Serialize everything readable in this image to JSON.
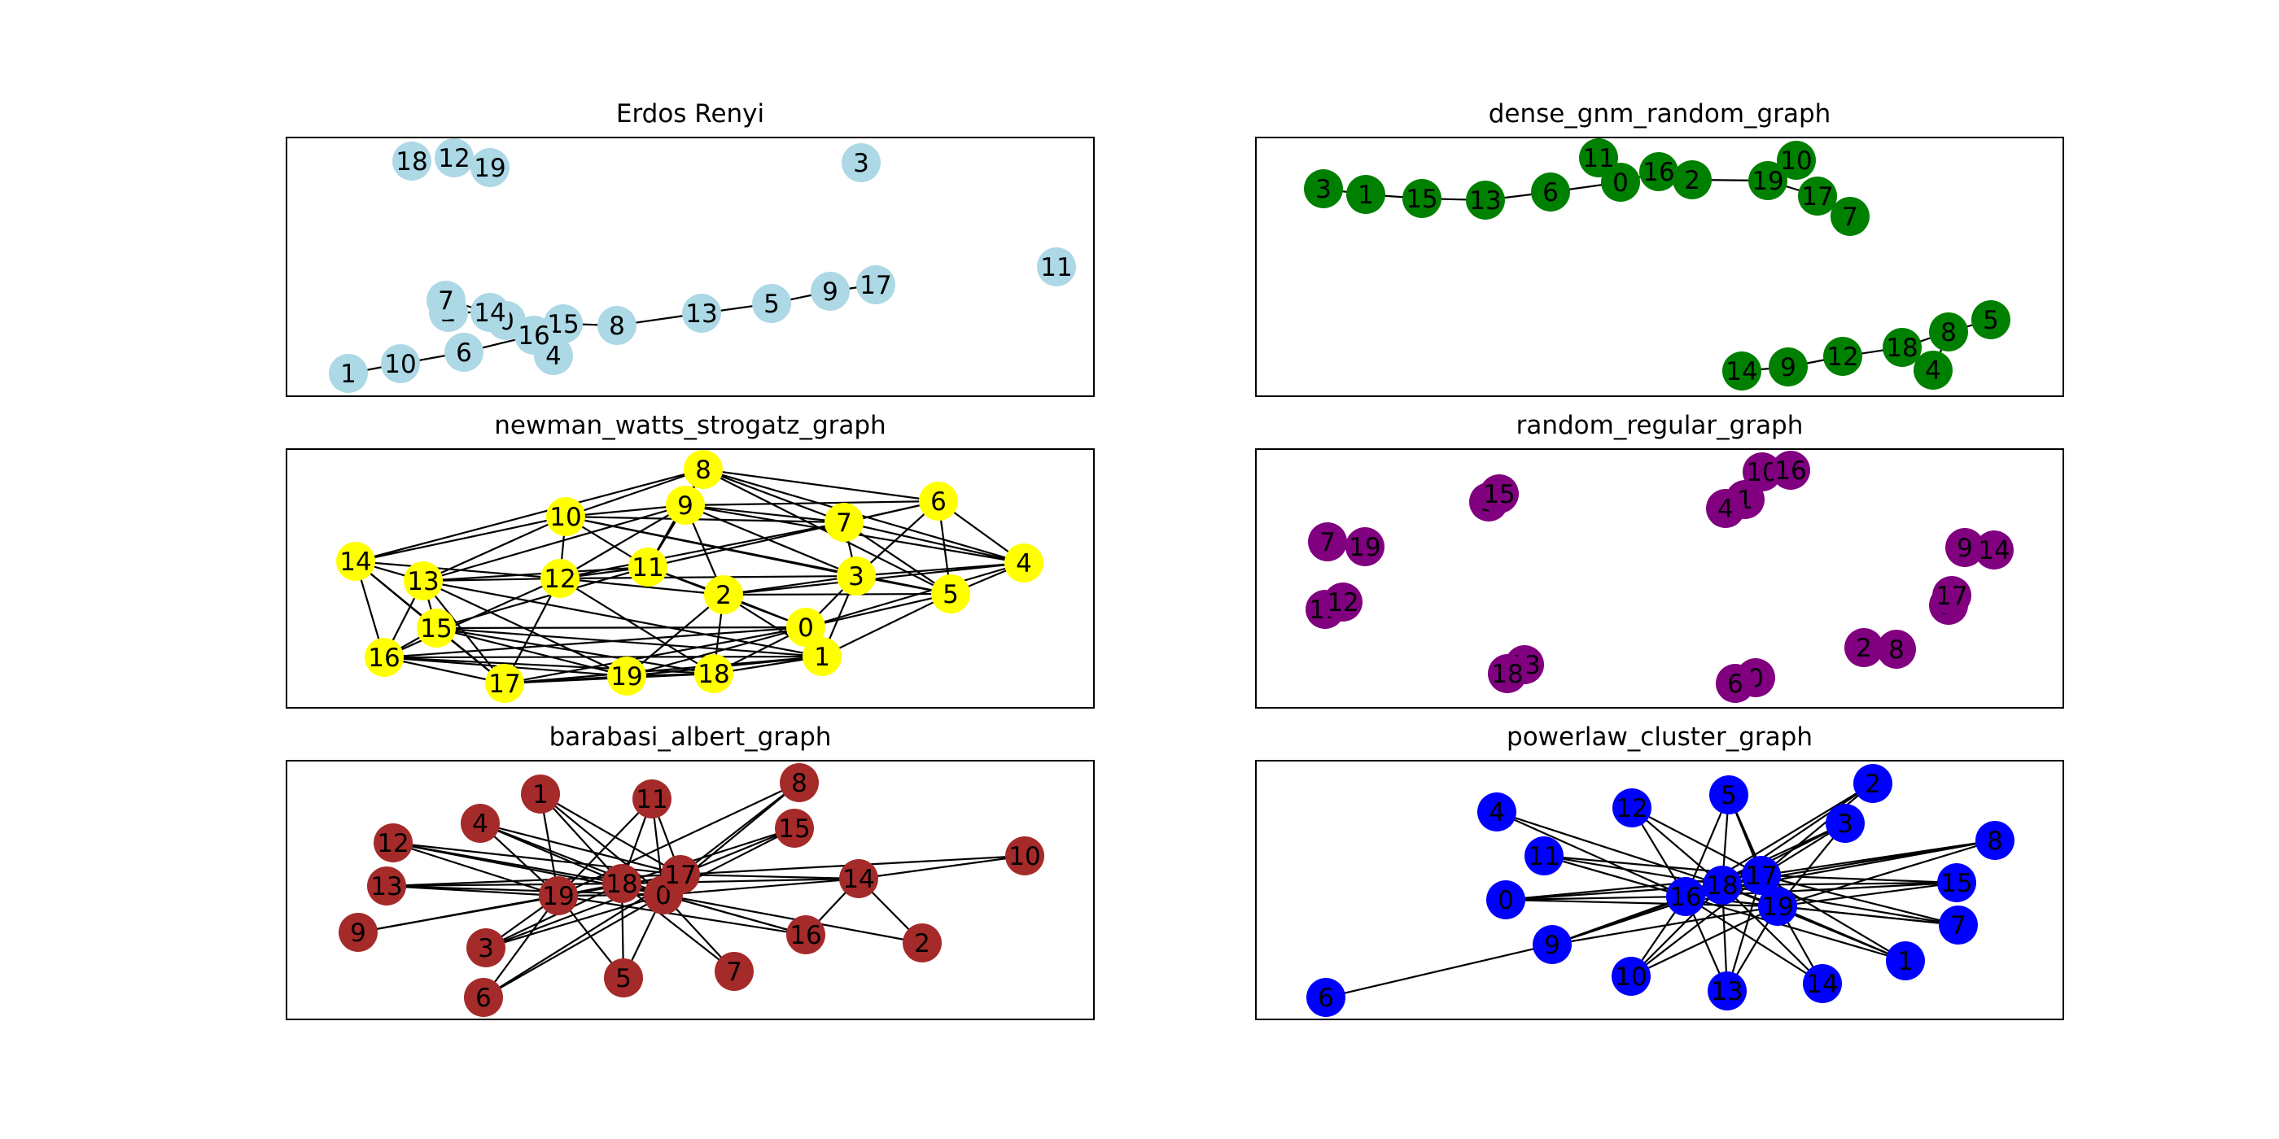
{
  "panels": [
    {
      "key": "erdos",
      "title": "Erdos Renyi",
      "node_color": "#add8e6",
      "nodes": [
        "0",
        "1",
        "2",
        "3",
        "4",
        "5",
        "6",
        "7",
        "8",
        "9",
        "10",
        "11",
        "12",
        "13",
        "14",
        "15",
        "16",
        "17",
        "18",
        "19"
      ],
      "edges": [
        [
          "1",
          "10"
        ],
        [
          "10",
          "6"
        ],
        [
          "6",
          "16"
        ],
        [
          "16",
          "4"
        ],
        [
          "16",
          "15"
        ],
        [
          "16",
          "0"
        ],
        [
          "0",
          "14"
        ],
        [
          "14",
          "2"
        ],
        [
          "14",
          "7"
        ],
        [
          "15",
          "8"
        ],
        [
          "8",
          "13"
        ],
        [
          "13",
          "5"
        ],
        [
          "5",
          "9"
        ],
        [
          "9",
          "17"
        ]
      ]
    },
    {
      "key": "dense_gnm",
      "title": "dense_gnm_random_graph",
      "node_color": "#008000",
      "nodes": [
        "0",
        "1",
        "2",
        "3",
        "4",
        "5",
        "6",
        "7",
        "8",
        "9",
        "10",
        "11",
        "12",
        "13",
        "14",
        "15",
        "16",
        "17",
        "18",
        "19"
      ],
      "edges": [
        [
          "3",
          "1"
        ],
        [
          "1",
          "15"
        ],
        [
          "15",
          "13"
        ],
        [
          "13",
          "6"
        ],
        [
          "6",
          "0"
        ],
        [
          "0",
          "11"
        ],
        [
          "0",
          "16"
        ],
        [
          "16",
          "2"
        ],
        [
          "2",
          "19"
        ],
        [
          "19",
          "10"
        ],
        [
          "19",
          "17"
        ],
        [
          "17",
          "7"
        ],
        [
          "14",
          "9"
        ],
        [
          "9",
          "12"
        ],
        [
          "12",
          "18"
        ],
        [
          "18",
          "8"
        ],
        [
          "8",
          "5"
        ],
        [
          "8",
          "4"
        ]
      ]
    },
    {
      "key": "newman",
      "title": "newman_watts_strogatz_graph",
      "node_color": "#ffff00",
      "nodes": [
        "0",
        "1",
        "2",
        "3",
        "4",
        "5",
        "6",
        "7",
        "8",
        "9",
        "10",
        "11",
        "12",
        "13",
        "14",
        "15",
        "16",
        "17",
        "18",
        "19"
      ],
      "edges": [
        [
          "0",
          "1"
        ],
        [
          "0",
          "2"
        ],
        [
          "0",
          "3"
        ],
        [
          "0",
          "4"
        ],
        [
          "0",
          "5"
        ],
        [
          "0",
          "18"
        ],
        [
          "0",
          "19"
        ],
        [
          "0",
          "17"
        ],
        [
          "0",
          "16"
        ],
        [
          "0",
          "15"
        ],
        [
          "0",
          "11"
        ],
        [
          "1",
          "2"
        ],
        [
          "1",
          "3"
        ],
        [
          "1",
          "5"
        ],
        [
          "1",
          "18"
        ],
        [
          "1",
          "19"
        ],
        [
          "1",
          "17"
        ],
        [
          "1",
          "16"
        ],
        [
          "1",
          "15"
        ],
        [
          "1",
          "13"
        ],
        [
          "2",
          "3"
        ],
        [
          "2",
          "4"
        ],
        [
          "2",
          "5"
        ],
        [
          "2",
          "11"
        ],
        [
          "2",
          "9"
        ],
        [
          "2",
          "18"
        ],
        [
          "2",
          "12"
        ],
        [
          "2",
          "19"
        ],
        [
          "3",
          "4"
        ],
        [
          "3",
          "5"
        ],
        [
          "3",
          "6"
        ],
        [
          "3",
          "7"
        ],
        [
          "3",
          "9"
        ],
        [
          "3",
          "12"
        ],
        [
          "3",
          "10"
        ],
        [
          "4",
          "5"
        ],
        [
          "4",
          "6"
        ],
        [
          "4",
          "7"
        ],
        [
          "4",
          "8"
        ],
        [
          "4",
          "9"
        ],
        [
          "5",
          "6"
        ],
        [
          "5",
          "7"
        ],
        [
          "5",
          "8"
        ],
        [
          "5",
          "10"
        ],
        [
          "6",
          "7"
        ],
        [
          "6",
          "8"
        ],
        [
          "6",
          "9"
        ],
        [
          "6",
          "11"
        ],
        [
          "7",
          "8"
        ],
        [
          "7",
          "9"
        ],
        [
          "7",
          "10"
        ],
        [
          "7",
          "12"
        ],
        [
          "8",
          "9"
        ],
        [
          "8",
          "10"
        ],
        [
          "8",
          "11"
        ],
        [
          "8",
          "14"
        ],
        [
          "9",
          "10"
        ],
        [
          "9",
          "11"
        ],
        [
          "9",
          "12"
        ],
        [
          "9",
          "13"
        ],
        [
          "10",
          "11"
        ],
        [
          "10",
          "12"
        ],
        [
          "10",
          "13"
        ],
        [
          "10",
          "14"
        ],
        [
          "11",
          "12"
        ],
        [
          "11",
          "13"
        ],
        [
          "11",
          "15"
        ],
        [
          "12",
          "13"
        ],
        [
          "12",
          "14"
        ],
        [
          "12",
          "16"
        ],
        [
          "12",
          "18"
        ],
        [
          "13",
          "14"
        ],
        [
          "13",
          "15"
        ],
        [
          "13",
          "16"
        ],
        [
          "13",
          "17"
        ],
        [
          "14",
          "15"
        ],
        [
          "14",
          "16"
        ],
        [
          "14",
          "17"
        ],
        [
          "15",
          "16"
        ],
        [
          "15",
          "17"
        ],
        [
          "15",
          "18"
        ],
        [
          "15",
          "19"
        ],
        [
          "16",
          "17"
        ],
        [
          "16",
          "18"
        ],
        [
          "16",
          "19"
        ],
        [
          "17",
          "18"
        ],
        [
          "17",
          "19"
        ],
        [
          "17",
          "12"
        ],
        [
          "18",
          "19"
        ],
        [
          "19",
          "13"
        ]
      ]
    },
    {
      "key": "random_regular",
      "title": "random_regular_graph",
      "node_color": "#800080",
      "nodes": [
        "0",
        "1",
        "2",
        "3",
        "4",
        "5",
        "6",
        "7",
        "8",
        "9",
        "10",
        "11",
        "12",
        "13",
        "14",
        "15",
        "16",
        "17",
        "18",
        "19"
      ],
      "edges": [
        [
          "5",
          "15"
        ],
        [
          "4",
          "1"
        ],
        [
          "1",
          "10"
        ],
        [
          "10",
          "16"
        ],
        [
          "7",
          "19"
        ],
        [
          "11",
          "12"
        ],
        [
          "18",
          "13"
        ],
        [
          "6",
          "0"
        ],
        [
          "2",
          "8"
        ],
        [
          "9",
          "14"
        ],
        [
          "17",
          "3"
        ]
      ]
    },
    {
      "key": "barabasi",
      "title": "barabasi_albert_graph",
      "node_color": "#a52a2a",
      "nodes": [
        "0",
        "1",
        "2",
        "3",
        "4",
        "5",
        "6",
        "7",
        "8",
        "9",
        "10",
        "11",
        "12",
        "13",
        "14",
        "15",
        "16",
        "17",
        "18",
        "19"
      ],
      "edges": [
        [
          "0",
          "1"
        ],
        [
          "0",
          "2"
        ],
        [
          "0",
          "3"
        ],
        [
          "0",
          "4"
        ],
        [
          "0",
          "5"
        ],
        [
          "0",
          "6"
        ],
        [
          "0",
          "7"
        ],
        [
          "0",
          "8"
        ],
        [
          "0",
          "11"
        ],
        [
          "0",
          "12"
        ],
        [
          "0",
          "13"
        ],
        [
          "0",
          "14"
        ],
        [
          "0",
          "15"
        ],
        [
          "0",
          "16"
        ],
        [
          "0",
          "17"
        ],
        [
          "0",
          "18"
        ],
        [
          "0",
          "19"
        ],
        [
          "17",
          "1"
        ],
        [
          "17",
          "4"
        ],
        [
          "17",
          "8"
        ],
        [
          "17",
          "11"
        ],
        [
          "17",
          "12"
        ],
        [
          "17",
          "13"
        ],
        [
          "17",
          "14"
        ],
        [
          "17",
          "15"
        ],
        [
          "17",
          "19"
        ],
        [
          "17",
          "3"
        ],
        [
          "17",
          "9"
        ],
        [
          "17",
          "6"
        ],
        [
          "17",
          "10"
        ],
        [
          "18",
          "1"
        ],
        [
          "18",
          "4"
        ],
        [
          "18",
          "11"
        ],
        [
          "18",
          "12"
        ],
        [
          "18",
          "19"
        ],
        [
          "18",
          "3"
        ],
        [
          "18",
          "5"
        ],
        [
          "18",
          "7"
        ],
        [
          "18",
          "13"
        ],
        [
          "18",
          "14"
        ],
        [
          "18",
          "16"
        ],
        [
          "18",
          "15"
        ],
        [
          "19",
          "12"
        ],
        [
          "19",
          "13"
        ],
        [
          "19",
          "9"
        ],
        [
          "19",
          "3"
        ],
        [
          "19",
          "6"
        ],
        [
          "19",
          "5"
        ],
        [
          "19",
          "4"
        ],
        [
          "19",
          "1"
        ],
        [
          "19",
          "8"
        ],
        [
          "19",
          "11"
        ],
        [
          "19",
          "16"
        ],
        [
          "14",
          "10"
        ],
        [
          "14",
          "2"
        ],
        [
          "14",
          "16"
        ]
      ]
    },
    {
      "key": "powerlaw",
      "title": "powerlaw_cluster_graph",
      "node_color": "#0000ff",
      "nodes": [
        "0",
        "1",
        "2",
        "3",
        "4",
        "5",
        "6",
        "7",
        "8",
        "9",
        "10",
        "11",
        "12",
        "13",
        "14",
        "15",
        "16",
        "17",
        "18",
        "19"
      ],
      "edges": [
        [
          "6",
          "9"
        ],
        [
          "9",
          "16"
        ],
        [
          "9",
          "17"
        ],
        [
          "9",
          "18"
        ],
        [
          "9",
          "19"
        ],
        [
          "0",
          "16"
        ],
        [
          "0",
          "17"
        ],
        [
          "0",
          "18"
        ],
        [
          "0",
          "19"
        ],
        [
          "4",
          "16"
        ],
        [
          "4",
          "18"
        ],
        [
          "11",
          "16"
        ],
        [
          "11",
          "17"
        ],
        [
          "11",
          "18"
        ],
        [
          "12",
          "16"
        ],
        [
          "12",
          "17"
        ],
        [
          "12",
          "18"
        ],
        [
          "5",
          "16"
        ],
        [
          "5",
          "17"
        ],
        [
          "5",
          "18"
        ],
        [
          "5",
          "19"
        ],
        [
          "2",
          "17"
        ],
        [
          "2",
          "18"
        ],
        [
          "2",
          "16"
        ],
        [
          "3",
          "17"
        ],
        [
          "3",
          "18"
        ],
        [
          "3",
          "16"
        ],
        [
          "3",
          "19"
        ],
        [
          "8",
          "17"
        ],
        [
          "8",
          "18"
        ],
        [
          "8",
          "19"
        ],
        [
          "8",
          "16"
        ],
        [
          "15",
          "17"
        ],
        [
          "15",
          "18"
        ],
        [
          "15",
          "19"
        ],
        [
          "15",
          "16"
        ],
        [
          "7",
          "17"
        ],
        [
          "7",
          "18"
        ],
        [
          "7",
          "19"
        ],
        [
          "7",
          "16"
        ],
        [
          "1",
          "17"
        ],
        [
          "1",
          "18"
        ],
        [
          "1",
          "19"
        ],
        [
          "1",
          "16"
        ],
        [
          "14",
          "17"
        ],
        [
          "14",
          "18"
        ],
        [
          "14",
          "16"
        ],
        [
          "13",
          "17"
        ],
        [
          "13",
          "18"
        ],
        [
          "13",
          "16"
        ],
        [
          "13",
          "19"
        ],
        [
          "10",
          "17"
        ],
        [
          "10",
          "18"
        ],
        [
          "10",
          "16"
        ],
        [
          "10",
          "19"
        ],
        [
          "16",
          "17"
        ],
        [
          "16",
          "18"
        ],
        [
          "16",
          "19"
        ],
        [
          "17",
          "18"
        ],
        [
          "17",
          "19"
        ],
        [
          "18",
          "19"
        ]
      ]
    }
  ]
}
